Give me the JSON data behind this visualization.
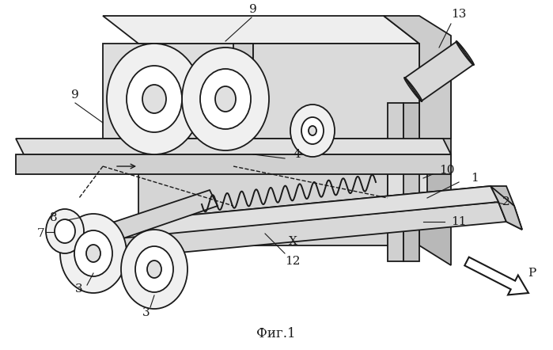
{
  "caption": "Фиг.1",
  "background_color": "#ffffff",
  "line_color": "#1a1a1a",
  "figsize": [
    6.99,
    4.42
  ],
  "dpi": 100,
  "lw": 1.3
}
